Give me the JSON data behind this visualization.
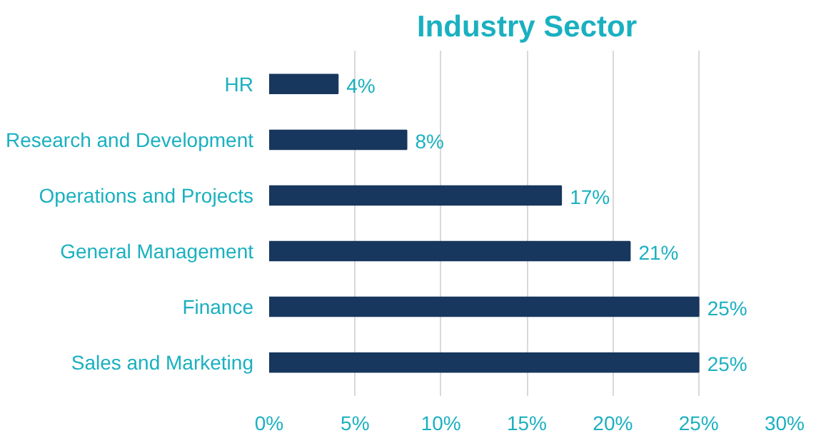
{
  "chart_data": {
    "type": "bar",
    "orientation": "horizontal",
    "title": "Industry Sector",
    "categories": [
      "HR",
      "Research and Development",
      "Operations and Projects",
      "General Management",
      "Finance",
      "Sales and Marketing"
    ],
    "values": [
      4,
      8,
      17,
      21,
      25,
      25
    ],
    "value_labels": [
      "4%",
      "8%",
      "17%",
      "21%",
      "25%",
      "25%"
    ],
    "color": "#17375e",
    "xlim": [
      0,
      30
    ],
    "xticks": [
      {
        "value": 0,
        "label": "0%"
      },
      {
        "value": 5,
        "label": "5%"
      },
      {
        "value": 10,
        "label": "10%"
      },
      {
        "value": 15,
        "label": "15%"
      },
      {
        "value": 20,
        "label": "20%"
      },
      {
        "value": 25,
        "label": "25%"
      },
      {
        "value": 30,
        "label": "30%"
      }
    ],
    "grid": "x"
  }
}
